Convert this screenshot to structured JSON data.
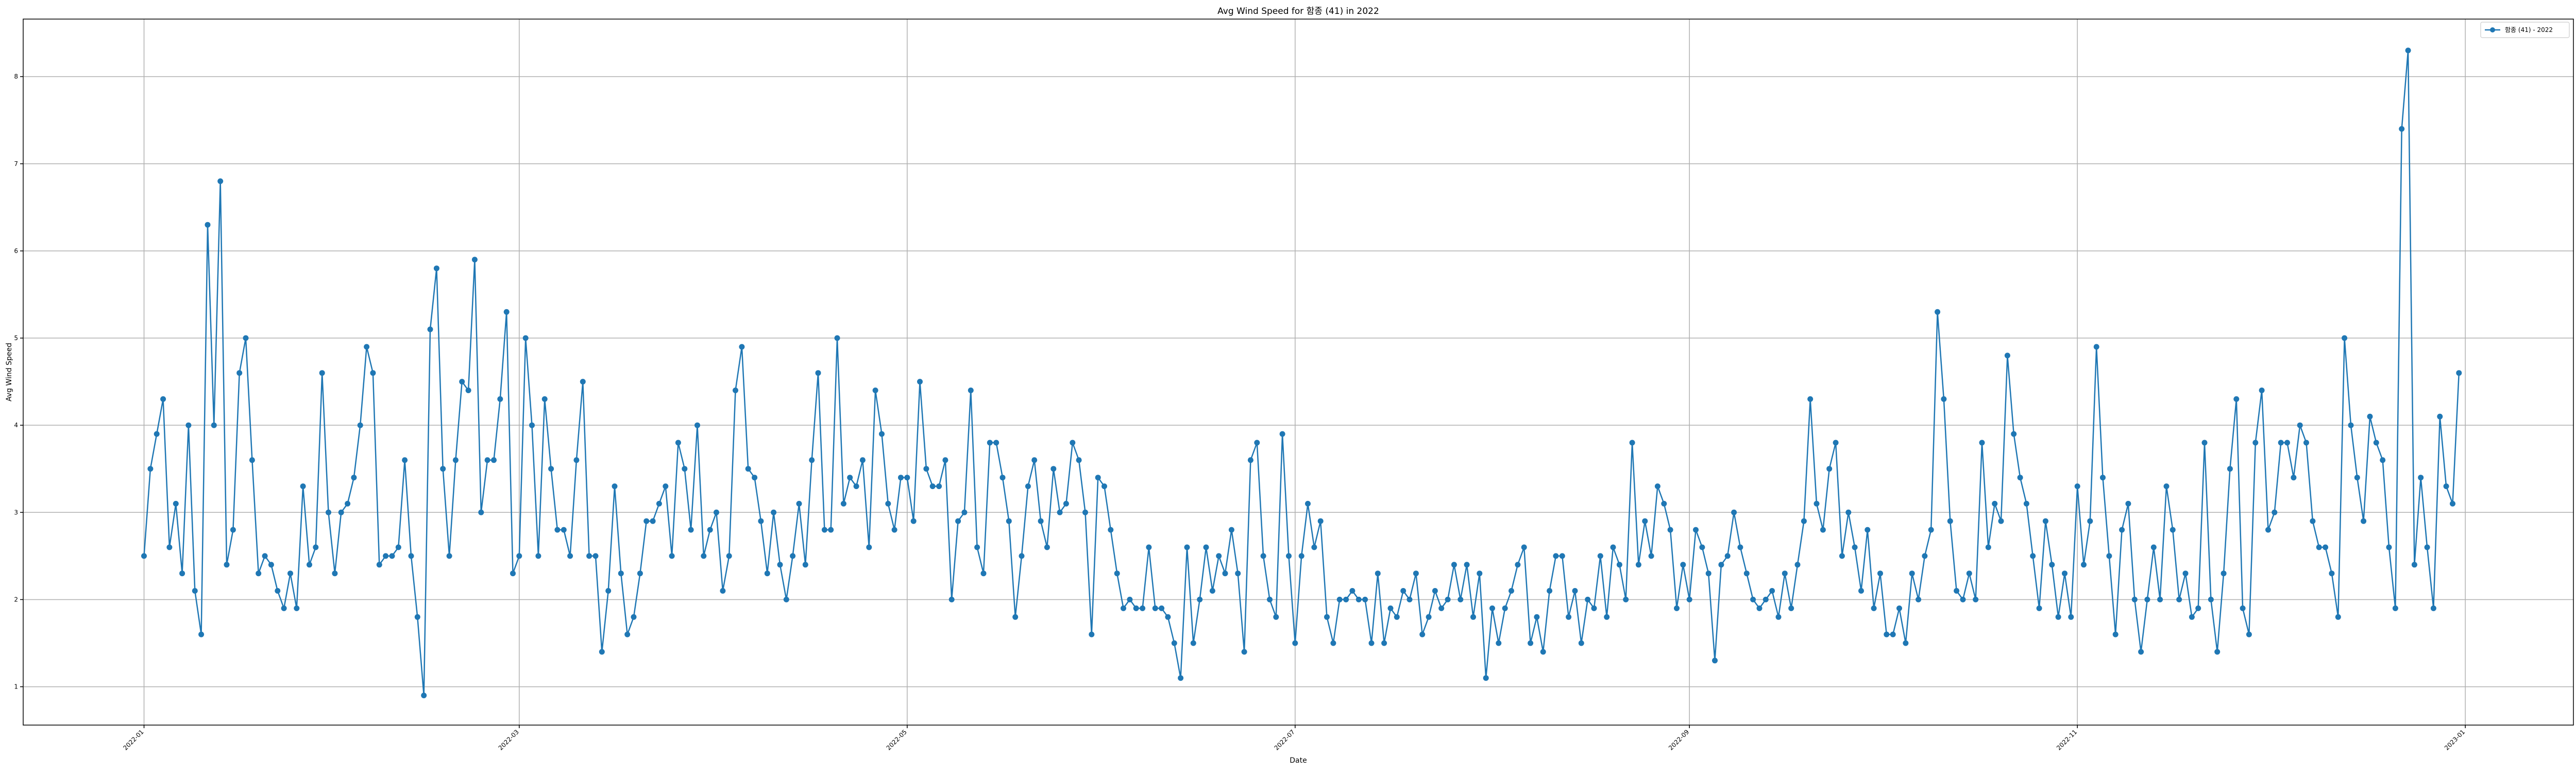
{
  "chart_data": {
    "type": "line",
    "title": "Avg Wind Speed for 함종 (41) in 2022",
    "xlabel": "Date",
    "ylabel": "Avg Wind Speed",
    "legend": {
      "placement": "top-right",
      "entries": [
        "함종 (41) - 2022"
      ]
    },
    "grid": true,
    "color": "#1f77b4",
    "x_start": "2022-01-01",
    "x_end": "2022-12-31",
    "xlim": [
      "2021-12-13",
      "2023-01-18"
    ],
    "ylim": [
      0.56,
      8.66
    ],
    "x_ticks": [
      "2022-01",
      "2022-03",
      "2022-05",
      "2022-07",
      "2022-09",
      "2022-11",
      "2023-01"
    ],
    "y_ticks": [
      1,
      2,
      3,
      4,
      5,
      6,
      7,
      8
    ],
    "series": [
      {
        "name": "함종 (41) - 2022",
        "values": [
          2.5,
          3.5,
          3.9,
          4.3,
          2.6,
          3.1,
          2.3,
          4.0,
          2.1,
          1.6,
          6.3,
          4.0,
          6.8,
          2.4,
          2.8,
          4.6,
          5.0,
          3.6,
          2.3,
          2.5,
          2.4,
          2.1,
          1.9,
          2.3,
          1.9,
          3.3,
          2.4,
          2.6,
          4.6,
          3.0,
          2.3,
          3.0,
          3.1,
          3.4,
          4.0,
          4.9,
          4.6,
          2.4,
          2.5,
          2.5,
          2.6,
          3.6,
          2.5,
          1.8,
          0.9,
          5.1,
          5.8,
          3.5,
          2.5,
          3.6,
          4.5,
          4.4,
          5.9,
          3.0,
          3.6,
          3.6,
          4.3,
          5.3,
          2.3,
          2.5,
          5.0,
          4.0,
          2.5,
          4.3,
          3.5,
          2.8,
          2.8,
          2.5,
          3.6,
          4.5,
          2.5,
          2.5,
          1.4,
          2.1,
          3.3,
          2.3,
          1.6,
          1.8,
          2.3,
          2.9,
          2.9,
          3.1,
          3.3,
          2.5,
          3.8,
          3.5,
          2.8,
          4.0,
          2.5,
          2.8,
          3.0,
          2.1,
          2.5,
          4.4,
          4.9,
          3.5,
          3.4,
          2.9,
          2.3,
          3.0,
          2.4,
          2.0,
          2.5,
          3.1,
          2.4,
          3.6,
          4.6,
          2.8,
          2.8,
          5.0,
          3.1,
          3.4,
          3.3,
          3.6,
          2.6,
          4.4,
          3.9,
          3.1,
          2.8,
          3.4,
          3.4,
          2.9,
          4.5,
          3.5,
          3.3,
          3.3,
          3.6,
          2.0,
          2.9,
          3.0,
          4.4,
          2.6,
          2.3,
          3.8,
          3.8,
          3.4,
          2.9,
          1.8,
          2.5,
          3.3,
          3.6,
          2.9,
          2.6,
          3.5,
          3.0,
          3.1,
          3.8,
          3.6,
          3.0,
          1.6,
          3.4,
          3.3,
          2.8,
          2.3,
          1.9,
          2.0,
          1.9,
          1.9,
          2.6,
          1.9,
          1.9,
          1.8,
          1.5,
          1.1,
          2.6,
          1.5,
          2.0,
          2.6,
          2.1,
          2.5,
          2.3,
          2.8,
          2.3,
          1.4,
          3.6,
          3.8,
          2.5,
          2.0,
          1.8,
          3.9,
          2.5,
          1.5,
          2.5,
          3.1,
          2.6,
          2.9,
          1.8,
          1.5,
          2.0,
          2.0,
          2.1,
          2.0,
          2.0,
          1.5,
          2.3,
          1.5,
          1.9,
          1.8,
          2.1,
          2.0,
          2.3,
          1.6,
          1.8,
          2.1,
          1.9,
          2.0,
          2.4,
          2.0,
          2.4,
          1.8,
          2.3,
          1.1,
          1.9,
          1.5,
          1.9,
          2.1,
          2.4,
          2.6,
          1.5,
          1.8,
          1.4,
          2.1,
          2.5,
          2.5,
          1.8,
          2.1,
          1.5,
          2.0,
          1.9,
          2.5,
          1.8,
          2.6,
          2.4,
          2.0,
          3.8,
          2.4,
          2.9,
          2.5,
          3.3,
          3.1,
          2.8,
          1.9,
          2.4,
          2.0,
          2.8,
          2.6,
          2.3,
          1.3,
          2.4,
          2.5,
          3.0,
          2.6,
          2.3,
          2.0,
          1.9,
          2.0,
          2.1,
          1.8,
          2.3,
          1.9,
          2.4,
          2.9,
          4.3,
          3.1,
          2.8,
          3.5,
          3.8,
          2.5,
          3.0,
          2.6,
          2.1,
          2.8,
          1.9,
          2.3,
          1.6,
          1.6,
          1.9,
          1.5,
          2.3,
          2.0,
          2.5,
          2.8,
          5.3,
          4.3,
          2.9,
          2.1,
          2.0,
          2.3,
          2.0,
          3.8,
          2.6,
          3.1,
          2.9,
          4.8,
          3.9,
          3.4,
          3.1,
          2.5,
          1.9,
          2.9,
          2.4,
          1.8,
          2.3,
          1.8,
          3.3,
          2.4,
          2.9,
          4.9,
          3.4,
          2.5,
          1.6,
          2.8,
          3.1,
          2.0,
          1.4,
          2.0,
          2.6,
          2.0,
          3.3,
          2.8,
          2.0,
          2.3,
          1.8,
          1.9,
          3.8,
          2.0,
          1.4,
          2.3,
          3.5,
          4.3,
          1.9,
          1.6,
          3.8,
          4.4,
          2.8,
          3.0,
          3.8,
          3.8,
          3.4,
          4.0,
          3.8,
          2.9,
          2.6,
          2.6,
          2.3,
          1.8,
          5.0,
          4.0,
          3.4,
          2.9,
          4.1,
          3.8,
          3.6,
          2.6,
          1.9,
          7.4,
          8.3,
          2.4,
          3.4,
          2.6,
          1.9,
          4.1,
          3.3,
          3.1,
          4.6
        ]
      }
    ]
  }
}
